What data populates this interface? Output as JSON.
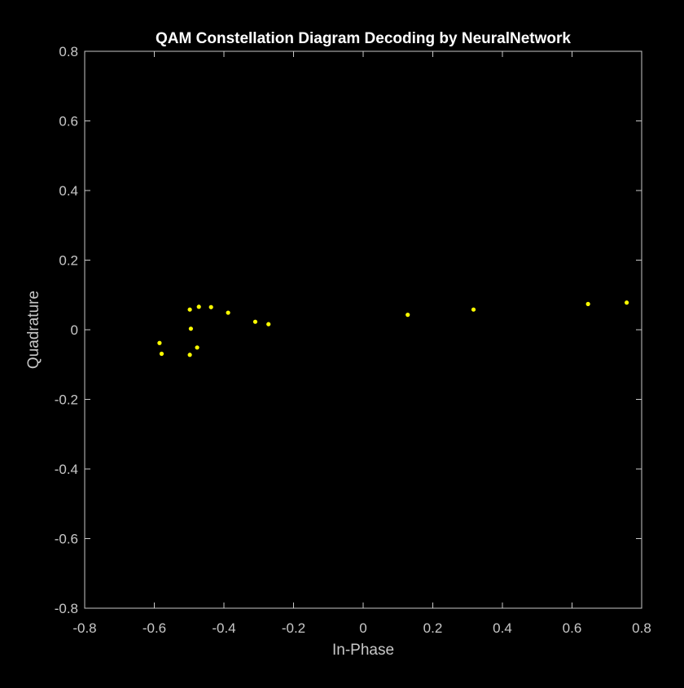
{
  "chart_data": {
    "type": "scatter",
    "title": "QAM Constellation Diagram Decoding by NeuralNetwork",
    "xlabel": "In-Phase",
    "ylabel": "Quadrature",
    "xlim": [
      -0.8,
      0.8
    ],
    "ylim": [
      -0.8,
      0.8
    ],
    "xticks": [
      -0.8,
      -0.6,
      -0.4,
      -0.2,
      0,
      0.2,
      0.4,
      0.6,
      0.8
    ],
    "yticks": [
      -0.8,
      -0.6,
      -0.4,
      -0.2,
      0,
      0.2,
      0.4,
      0.6,
      0.8
    ],
    "xtick_labels": [
      "-0.8",
      "-0.6",
      "-0.4",
      "-0.2",
      "0",
      "0.2",
      "0.4",
      "0.6",
      "0.8"
    ],
    "ytick_labels": [
      "-0.8",
      "-0.6",
      "-0.4",
      "-0.2",
      "0",
      "0.2",
      "0.4",
      "0.6",
      "0.8"
    ],
    "grid": false,
    "background": "#000000",
    "axes_color": "#c8c8c8",
    "marker_color": "#ffff00",
    "series": [
      {
        "points": [
          {
            "x": -0.498,
            "y": 0.058
          },
          {
            "x": -0.472,
            "y": 0.066
          },
          {
            "x": -0.437,
            "y": 0.065
          },
          {
            "x": -0.388,
            "y": 0.049
          },
          {
            "x": -0.31,
            "y": 0.023
          },
          {
            "x": -0.272,
            "y": 0.016
          },
          {
            "x": -0.495,
            "y": 0.003
          },
          {
            "x": -0.585,
            "y": -0.038
          },
          {
            "x": -0.579,
            "y": -0.069
          },
          {
            "x": -0.498,
            "y": -0.072
          },
          {
            "x": -0.477,
            "y": -0.051
          },
          {
            "x": 0.128,
            "y": 0.043
          },
          {
            "x": 0.317,
            "y": 0.058
          },
          {
            "x": 0.646,
            "y": 0.074
          },
          {
            "x": 0.757,
            "y": 0.078
          }
        ]
      }
    ]
  }
}
